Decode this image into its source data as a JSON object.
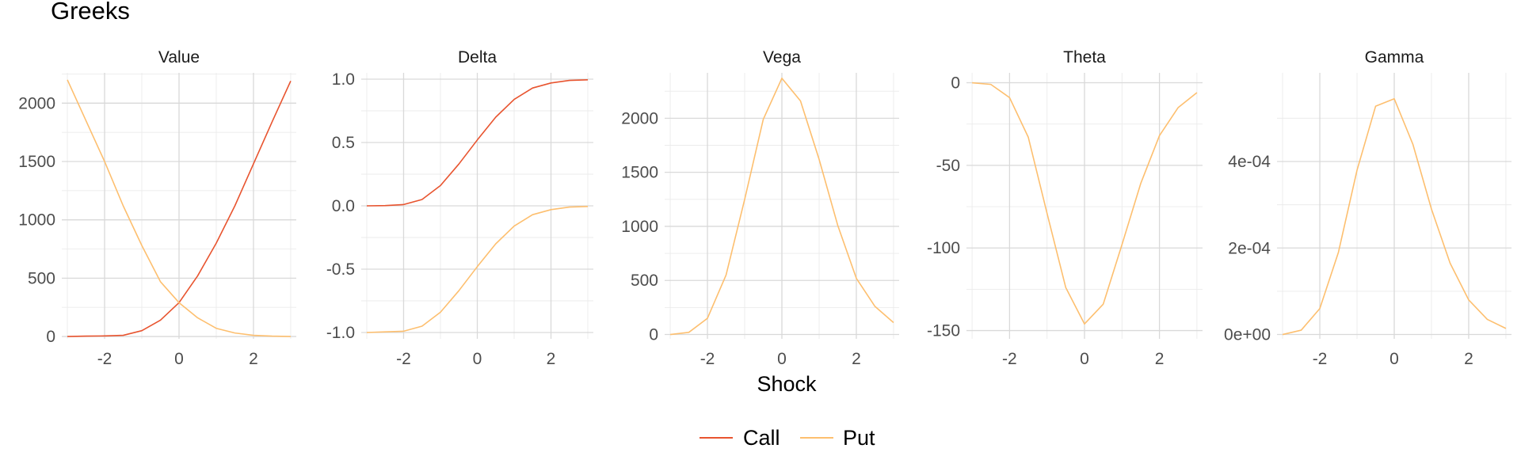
{
  "chart_data": {
    "type": "line",
    "title": "Greeks",
    "xlabel": "Shock",
    "legend": {
      "position": "bottom",
      "entries": [
        {
          "name": "Call",
          "color": "#e8542f"
        },
        {
          "name": "Put",
          "color": "#fdbf6f"
        }
      ]
    },
    "x": [
      -3,
      -2.5,
      -2,
      -1.5,
      -1,
      -0.5,
      0,
      0.5,
      1,
      1.5,
      2,
      2.5,
      3
    ],
    "x_range": [
      -3.15,
      3.15
    ],
    "x_ticks": [
      -2,
      0,
      2
    ],
    "x_tick_labels": [
      "-2",
      "0",
      "2"
    ],
    "panels": [
      {
        "name": "Value",
        "y_range": [
          -20,
          2260
        ],
        "y_ticks": [
          0,
          500,
          1000,
          1500,
          2000
        ],
        "y_tick_labels": [
          "0",
          "500",
          "1000",
          "1500",
          "2000"
        ],
        "series": [
          {
            "name": "Call",
            "values": [
              0,
              3,
              5,
              10,
              50,
              140,
              290,
              520,
              800,
              1120,
              1480,
              1840,
              2190
            ]
          },
          {
            "name": "Put",
            "values": [
              2200,
              1850,
              1500,
              1120,
              780,
              470,
              290,
              160,
              70,
              30,
              10,
              3,
              0
            ]
          }
        ]
      },
      {
        "name": "Delta",
        "y_range": [
          -1.05,
          1.05
        ],
        "y_ticks": [
          -1.0,
          -0.5,
          0.0,
          0.5,
          1.0
        ],
        "y_tick_labels": [
          "-1.0",
          "-0.5",
          "0.0",
          "0.5",
          "1.0"
        ],
        "series": [
          {
            "name": "Call",
            "values": [
              0,
              0.002,
              0.01,
              0.05,
              0.16,
              0.33,
              0.52,
              0.7,
              0.84,
              0.93,
              0.97,
              0.99,
              0.995
            ]
          },
          {
            "name": "Put",
            "values": [
              -1.0,
              -0.995,
              -0.99,
              -0.95,
              -0.84,
              -0.67,
              -0.48,
              -0.3,
              -0.16,
              -0.07,
              -0.03,
              -0.01,
              -0.005
            ]
          }
        ]
      },
      {
        "name": "Vega",
        "y_range": [
          -40,
          2420
        ],
        "y_ticks": [
          0,
          500,
          1000,
          1500,
          2000
        ],
        "y_tick_labels": [
          "0",
          "500",
          "1000",
          "1500",
          "2000"
        ],
        "series": [
          {
            "name": "Put",
            "values": [
              0,
              20,
              150,
              550,
              1250,
              1990,
              2370,
              2160,
              1620,
              1010,
              520,
              260,
              110
            ]
          }
        ]
      },
      {
        "name": "Theta",
        "y_range": [
          -155,
          6
        ],
        "y_ticks": [
          -150,
          -100,
          -50,
          0
        ],
        "y_tick_labels": [
          "-150",
          "-100",
          "-50",
          "0"
        ],
        "series": [
          {
            "name": "Put",
            "values": [
              0,
              -1,
              -9,
              -33,
              -79,
              -124,
              -146,
              -134,
              -98,
              -61,
              -32,
              -15,
              -6
            ]
          }
        ]
      },
      {
        "name": "Gamma",
        "y_range": [
          -1e-05,
          0.000605
        ],
        "y_ticks": [
          0,
          0.0002,
          0.0004
        ],
        "y_tick_labels": [
          "0e+00",
          "2e-04",
          "4e-04"
        ],
        "series": [
          {
            "name": "Put",
            "values": [
              0,
              1e-05,
              6e-05,
              0.00019,
              0.00038,
              0.000528,
              0.000545,
              0.00044,
              0.00029,
              0.000165,
              8e-05,
              3.5e-05,
              1.4e-05
            ]
          }
        ]
      }
    ]
  }
}
